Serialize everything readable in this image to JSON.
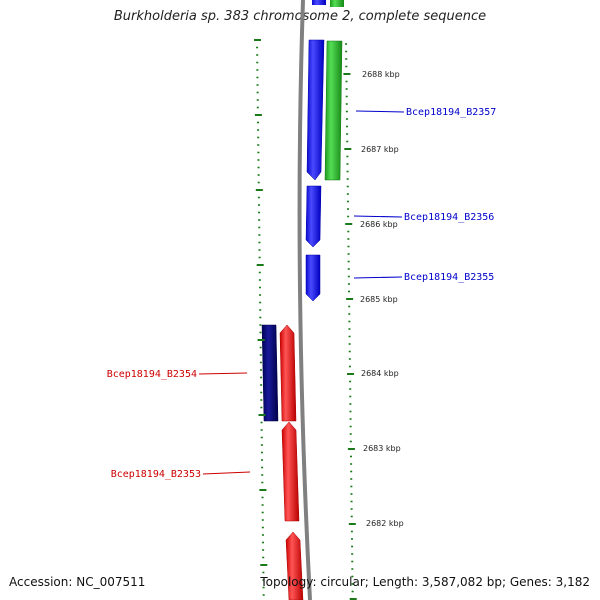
{
  "title": "Burkholderia sp. 383 chromosome 2, complete sequence",
  "footer": {
    "accession": "Accession: NC_007511",
    "summary": "Topology: circular; Length: 3,587,082 bp; Genes: 3,182"
  },
  "ruler": {
    "ticks": [
      "2688 kbp",
      "2687 kbp",
      "2686 kbp",
      "2685 kbp",
      "2684 kbp",
      "2683 kbp",
      "2682 kbp"
    ]
  },
  "genes": {
    "B2357": {
      "label": "Bcep18194_B2357",
      "color": "#0000cc"
    },
    "B2356": {
      "label": "Bcep18194_B2356",
      "color": "#0000cc"
    },
    "B2355": {
      "label": "Bcep18194_B2355",
      "color": "#0000cc"
    },
    "B2354": {
      "label": "Bcep18194_B2354",
      "color": "#cc0000"
    },
    "B2353": {
      "label": "Bcep18194_B2353",
      "color": "#cc0000"
    }
  },
  "colors": {
    "forward_cds": "#1a1aff",
    "reverse_cds": "#ee1111",
    "forward_rna": "#33bb33",
    "reverse_feature": "#000080",
    "backbone": "#808080",
    "tick": "#1a7a1a"
  }
}
